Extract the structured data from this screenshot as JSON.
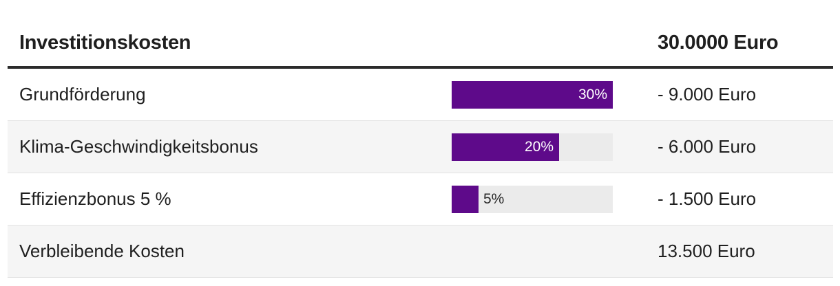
{
  "header": {
    "label": "Investitionskosten",
    "value": "30.0000 Euro"
  },
  "rows": [
    {
      "label": "Grundförderung",
      "percent": 30,
      "percent_label": "30%",
      "fill": 1.0,
      "value": "- 9.000 Euro"
    },
    {
      "label": "Klima-Geschwindigkeitsbonus",
      "percent": 20,
      "percent_label": "20%",
      "fill": 0.667,
      "value": "- 6.000 Euro"
    },
    {
      "label": "Effizienzbonus 5 %",
      "percent": 5,
      "percent_label": "5%",
      "fill": 0.167,
      "value": "- 1.500 Euro"
    }
  ],
  "total": {
    "label": "Verbleibende Kosten",
    "value": "13.500 Euro"
  },
  "colors": {
    "bar_fill": "#5e0a8a",
    "bar_track": "#ebebeb"
  }
}
